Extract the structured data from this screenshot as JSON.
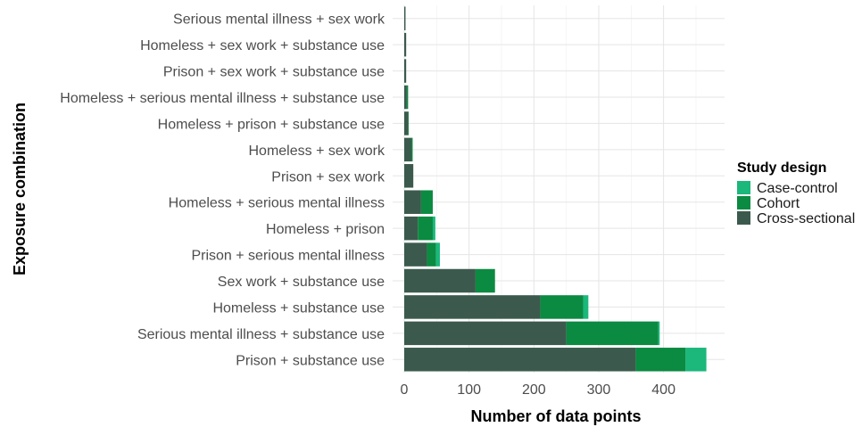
{
  "chart_data": {
    "type": "bar",
    "orientation": "horizontal",
    "stacked": true,
    "categories": [
      "Serious mental illness + sex work",
      "Homeless + sex work + substance use",
      "Prison + sex work + substance use",
      "Homeless + serious mental illness + substance use",
      "Homeless + prison + substance use",
      "Homeless + sex work",
      "Prison + sex work",
      "Homeless + serious mental illness",
      "Homeless + prison",
      "Prison + serious mental illness",
      "Sex work + substance use",
      "Homeless + substance use",
      "Serious mental illness + substance use",
      "Prison + substance use"
    ],
    "series": [
      {
        "name": "Cross-sectional",
        "color": "#3b5a4d",
        "values": [
          2,
          3,
          3,
          4,
          6,
          11,
          14,
          26,
          21,
          35,
          110,
          210,
          250,
          357
        ]
      },
      {
        "name": "Cohort",
        "color": "#0b8a41",
        "values": [
          0,
          0,
          0,
          2,
          1,
          2,
          0,
          18,
          23,
          14,
          30,
          66,
          142,
          77
        ]
      },
      {
        "name": "Case-control",
        "color": "#1bb77b",
        "values": [
          0,
          0,
          0,
          0,
          0,
          0,
          0,
          0,
          4,
          6,
          0,
          8,
          2,
          32
        ]
      }
    ],
    "xlabel": "Number of data points",
    "ylabel": "Exposure combination",
    "xlim": [
      0,
      490
    ],
    "xticks": [
      0,
      100,
      200,
      300,
      400
    ],
    "grid": true,
    "legend": {
      "title": "Study design",
      "placement": "right",
      "entries": [
        "Case-control",
        "Cohort",
        "Cross-sectional"
      ]
    }
  }
}
